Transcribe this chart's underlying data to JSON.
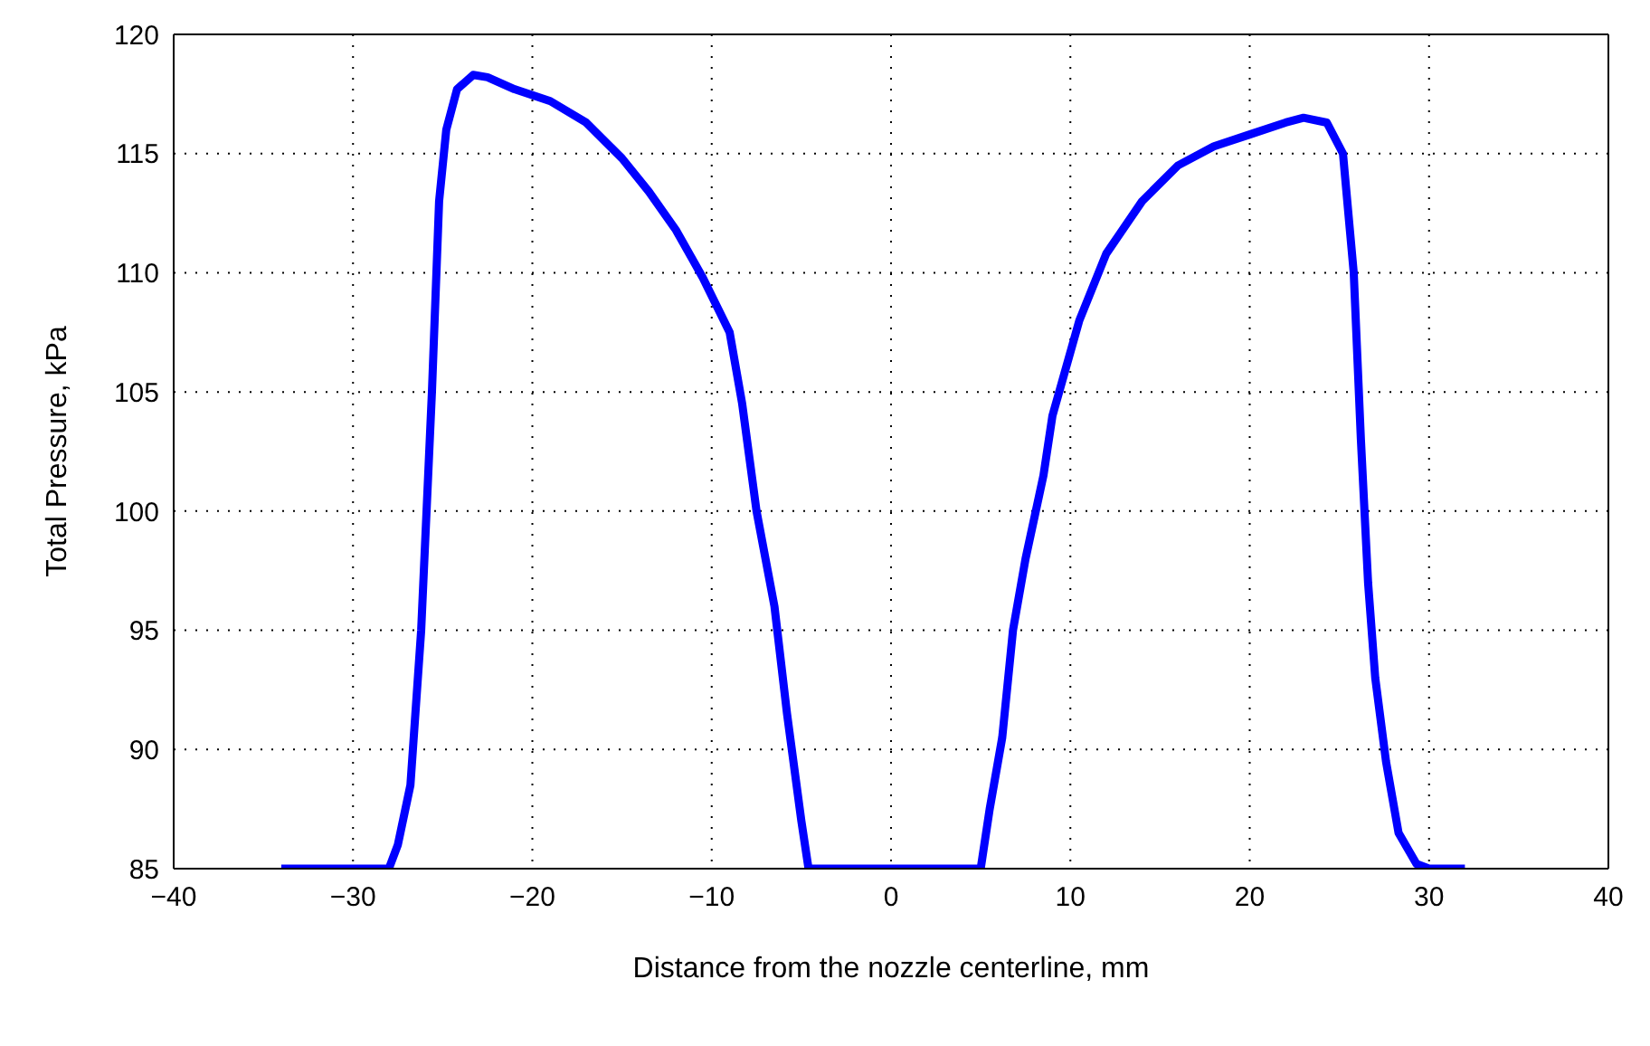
{
  "chart_data": {
    "type": "line",
    "xlabel": "Distance from the nozzle centerline, mm",
    "ylabel": "Total Pressure, kPa",
    "xlim": [
      -40,
      40
    ],
    "xticks": [
      {
        "value": -40,
        "label": "−40"
      },
      {
        "value": -30,
        "label": "−30"
      },
      {
        "value": -20,
        "label": "−20"
      },
      {
        "value": -10,
        "label": "−10"
      },
      0,
      10,
      20,
      30,
      40
    ],
    "ylim": [
      85,
      120
    ],
    "yticks": [
      85,
      90,
      95,
      100,
      105,
      110,
      115,
      120
    ],
    "grid": true,
    "legend": false,
    "marker": "none",
    "line_style": "solid",
    "series": [
      {
        "color": "#0000ff",
        "x": [
          -34,
          -28,
          -27.5,
          -26.8,
          -26.2,
          -25.6,
          -25.2,
          -24.8,
          -24.2,
          -23.3,
          -22.5,
          -21,
          -19,
          -17,
          -15,
          -13.5,
          -12,
          -10.5,
          -9,
          -8.3,
          -7.5,
          -6.5,
          -5.8,
          -5,
          -4.6,
          0,
          5,
          5.5,
          6.2,
          6.8,
          7.5,
          8.5,
          9,
          10.5,
          12,
          14,
          16,
          18,
          20,
          22,
          23,
          24.3,
          25.2,
          25.8,
          26.2,
          26.6,
          27,
          27.6,
          28.3,
          29.3,
          30,
          32
        ],
        "values": [
          85,
          85,
          86,
          88.5,
          95,
          105,
          113,
          116,
          117.7,
          118.3,
          118.2,
          117.7,
          117.2,
          116.3,
          114.8,
          113.4,
          111.8,
          109.8,
          107.5,
          104.5,
          100,
          96,
          91.5,
          87,
          85,
          85,
          85,
          87.5,
          90.5,
          95,
          98,
          101.5,
          104,
          108,
          110.8,
          113,
          114.5,
          115.3,
          115.8,
          116.3,
          116.5,
          116.3,
          115,
          110,
          103,
          97,
          93,
          89.5,
          86.5,
          85.2,
          85,
          85
        ]
      }
    ]
  }
}
